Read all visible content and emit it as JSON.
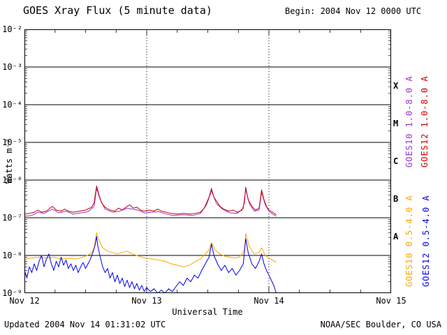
{
  "header": {
    "begin_label": "Begin:  2004 Nov 12 0000 UTC"
  },
  "footer": {
    "updated": "Updated 2004 Nov 14 01:31:02 UTC",
    "credit": "NOAA/SEC Boulder, CO USA"
  },
  "chart_data": {
    "type": "line",
    "title": "GOES Xray Flux (5 minute data)",
    "xlabel": "Universal Time",
    "ylabel": "Watts m⁻²",
    "x_axis": {
      "lim": [
        0,
        3
      ],
      "ticks": [
        {
          "t": 0,
          "label": "Nov 12"
        },
        {
          "t": 1,
          "label": "Nov 13"
        },
        {
          "t": 2,
          "label": "Nov 14"
        },
        {
          "t": 3,
          "label": "Nov 15"
        }
      ]
    },
    "y_axis": {
      "log10_lim": [
        -2,
        -9
      ],
      "tick_labels": [
        "10⁻²",
        "10⁻³",
        "10⁻⁴",
        "10⁻⁵",
        "10⁻⁶",
        "10⁻⁷",
        "10⁻⁸",
        "10⁻⁹"
      ]
    },
    "flare_classes": [
      {
        "label": "X",
        "log10_center": -3.5
      },
      {
        "label": "M",
        "log10_center": -4.5
      },
      {
        "label": "C",
        "log10_center": -5.5
      },
      {
        "label": "B",
        "log10_center": -6.5
      },
      {
        "label": "A",
        "log10_center": -7.5
      }
    ],
    "grid": {
      "h_lines_log10": [
        -3,
        -4,
        -5,
        -6,
        -7,
        -8
      ],
      "v_lines_days": [
        1,
        2
      ]
    },
    "series": [
      {
        "name": "GOES10 1.0-8.0 A",
        "color": "#9933cc",
        "points": [
          [
            0.0,
            1.1e-07
          ],
          [
            0.06,
            1.15e-07
          ],
          [
            0.11,
            1.4e-07
          ],
          [
            0.16,
            1.3e-07
          ],
          [
            0.23,
            1.7e-07
          ],
          [
            0.28,
            1.35e-07
          ],
          [
            0.34,
            1.5e-07
          ],
          [
            0.4,
            1.25e-07
          ],
          [
            0.46,
            1.35e-07
          ],
          [
            0.52,
            1.45e-07
          ],
          [
            0.57,
            2e-07
          ],
          [
            0.59,
            6e-07
          ],
          [
            0.62,
            3e-07
          ],
          [
            0.66,
            1.7e-07
          ],
          [
            0.72,
            1.4e-07
          ],
          [
            0.78,
            1.5e-07
          ],
          [
            0.84,
            1.8e-07
          ],
          [
            0.88,
            1.7e-07
          ],
          [
            0.93,
            1.6e-07
          ],
          [
            0.98,
            1.35e-07
          ],
          [
            1.04,
            1.4e-07
          ],
          [
            1.1,
            1.45e-07
          ],
          [
            1.16,
            1.25e-07
          ],
          [
            1.22,
            1.15e-07
          ],
          [
            1.3,
            1.2e-07
          ],
          [
            1.38,
            1.15e-07
          ],
          [
            1.44,
            1.3e-07
          ],
          [
            1.49,
            2.2e-07
          ],
          [
            1.53,
            5.2e-07
          ],
          [
            1.57,
            2.4e-07
          ],
          [
            1.62,
            1.7e-07
          ],
          [
            1.68,
            1.35e-07
          ],
          [
            1.74,
            1.3e-07
          ],
          [
            1.79,
            1.8e-07
          ],
          [
            1.81,
            5.6e-07
          ],
          [
            1.84,
            2.4e-07
          ],
          [
            1.88,
            1.5e-07
          ],
          [
            1.92,
            1.6e-07
          ],
          [
            1.94,
            4.8e-07
          ],
          [
            1.97,
            2.2e-07
          ],
          [
            2.0,
            1.5e-07
          ],
          [
            2.03,
            1.25e-07
          ],
          [
            2.06,
            1.1e-07
          ]
        ]
      },
      {
        "name": "GOES12 1.0-8.0 A",
        "color": "#cc0000",
        "points": [
          [
            0.0,
            1.25e-07
          ],
          [
            0.04,
            1.3e-07
          ],
          [
            0.08,
            1.4e-07
          ],
          [
            0.11,
            1.6e-07
          ],
          [
            0.14,
            1.4e-07
          ],
          [
            0.18,
            1.5e-07
          ],
          [
            0.21,
            1.8e-07
          ],
          [
            0.23,
            2e-07
          ],
          [
            0.26,
            1.6e-07
          ],
          [
            0.3,
            1.5e-07
          ],
          [
            0.33,
            1.7e-07
          ],
          [
            0.36,
            1.5e-07
          ],
          [
            0.4,
            1.4e-07
          ],
          [
            0.45,
            1.5e-07
          ],
          [
            0.5,
            1.6e-07
          ],
          [
            0.55,
            1.9e-07
          ],
          [
            0.57,
            2.5e-07
          ],
          [
            0.59,
            7e-07
          ],
          [
            0.61,
            4e-07
          ],
          [
            0.63,
            2.5e-07
          ],
          [
            0.66,
            1.9e-07
          ],
          [
            0.7,
            1.6e-07
          ],
          [
            0.74,
            1.5e-07
          ],
          [
            0.77,
            1.8e-07
          ],
          [
            0.8,
            1.6e-07
          ],
          [
            0.84,
            2e-07
          ],
          [
            0.86,
            2.2e-07
          ],
          [
            0.89,
            1.8e-07
          ],
          [
            0.92,
            1.9e-07
          ],
          [
            0.95,
            1.6e-07
          ],
          [
            0.98,
            1.5e-07
          ],
          [
            1.02,
            1.6e-07
          ],
          [
            1.06,
            1.5e-07
          ],
          [
            1.09,
            1.7e-07
          ],
          [
            1.12,
            1.5e-07
          ],
          [
            1.16,
            1.4e-07
          ],
          [
            1.2,
            1.3e-07
          ],
          [
            1.25,
            1.25e-07
          ],
          [
            1.3,
            1.3e-07
          ],
          [
            1.35,
            1.25e-07
          ],
          [
            1.4,
            1.3e-07
          ],
          [
            1.44,
            1.4e-07
          ],
          [
            1.47,
            1.8e-07
          ],
          [
            1.49,
            2.5e-07
          ],
          [
            1.51,
            3.5e-07
          ],
          [
            1.53,
            6e-07
          ],
          [
            1.55,
            3.5e-07
          ],
          [
            1.57,
            2.8e-07
          ],
          [
            1.6,
            2e-07
          ],
          [
            1.63,
            1.7e-07
          ],
          [
            1.67,
            1.5e-07
          ],
          [
            1.71,
            1.6e-07
          ],
          [
            1.74,
            1.4e-07
          ],
          [
            1.78,
            1.6e-07
          ],
          [
            1.8,
            2.5e-07
          ],
          [
            1.81,
            6.5e-07
          ],
          [
            1.83,
            3e-07
          ],
          [
            1.86,
            2e-07
          ],
          [
            1.89,
            1.6e-07
          ],
          [
            1.92,
            1.8e-07
          ],
          [
            1.94,
            5.5e-07
          ],
          [
            1.96,
            3e-07
          ],
          [
            1.98,
            2e-07
          ],
          [
            2.0,
            1.6e-07
          ],
          [
            2.03,
            1.4e-07
          ],
          [
            2.06,
            1.2e-07
          ]
        ]
      },
      {
        "name": "GOES10 0.5-4.0 A",
        "color": "#ffa500",
        "points": [
          [
            0.0,
            8e-09
          ],
          [
            0.06,
            8.5e-09
          ],
          [
            0.12,
            9e-09
          ],
          [
            0.18,
            8.5e-09
          ],
          [
            0.24,
            9e-09
          ],
          [
            0.3,
            8e-09
          ],
          [
            0.36,
            8.5e-09
          ],
          [
            0.42,
            8e-09
          ],
          [
            0.48,
            9e-09
          ],
          [
            0.54,
            1.1e-08
          ],
          [
            0.57,
            1.5e-08
          ],
          [
            0.59,
            4e-08
          ],
          [
            0.61,
            2.5e-08
          ],
          [
            0.64,
            1.6e-08
          ],
          [
            0.68,
            1.3e-08
          ],
          [
            0.72,
            1.2e-08
          ],
          [
            0.76,
            1.1e-08
          ],
          [
            0.8,
            1.2e-08
          ],
          [
            0.84,
            1.3e-08
          ],
          [
            0.88,
            1.1e-08
          ],
          [
            0.92,
            1e-08
          ],
          [
            0.96,
            9e-09
          ],
          [
            1.0,
            8.5e-09
          ],
          [
            1.05,
            8e-09
          ],
          [
            1.1,
            7.5e-09
          ],
          [
            1.15,
            7e-09
          ],
          [
            1.2,
            6e-09
          ],
          [
            1.25,
            5.5e-09
          ],
          [
            1.3,
            5e-09
          ],
          [
            1.35,
            5.5e-09
          ],
          [
            1.4,
            7e-09
          ],
          [
            1.44,
            8e-09
          ],
          [
            1.48,
            1.1e-08
          ],
          [
            1.51,
            1.4e-08
          ],
          [
            1.53,
            2.2e-08
          ],
          [
            1.56,
            1.4e-08
          ],
          [
            1.6,
            1.1e-08
          ],
          [
            1.64,
            9.5e-09
          ],
          [
            1.68,
            9e-09
          ],
          [
            1.72,
            8.5e-09
          ],
          [
            1.76,
            9e-09
          ],
          [
            1.8,
            1.4e-08
          ],
          [
            1.81,
            3.8e-08
          ],
          [
            1.84,
            1.7e-08
          ],
          [
            1.88,
            1.1e-08
          ],
          [
            1.92,
            1.2e-08
          ],
          [
            1.94,
            1.6e-08
          ],
          [
            1.97,
            1e-08
          ],
          [
            2.0,
            8.5e-09
          ],
          [
            2.03,
            7.5e-09
          ],
          [
            2.06,
            6.5e-09
          ]
        ]
      },
      {
        "name": "GOES12 0.5-4.0 A",
        "color": "#0000ee",
        "points": [
          [
            0.0,
            4e-09
          ],
          [
            0.02,
            2.5e-09
          ],
          [
            0.04,
            5e-09
          ],
          [
            0.06,
            3.5e-09
          ],
          [
            0.08,
            6e-09
          ],
          [
            0.1,
            4e-09
          ],
          [
            0.12,
            7e-09
          ],
          [
            0.14,
            1e-08
          ],
          [
            0.16,
            5e-09
          ],
          [
            0.18,
            8e-09
          ],
          [
            0.2,
            1.1e-08
          ],
          [
            0.22,
            6e-09
          ],
          [
            0.24,
            4e-09
          ],
          [
            0.26,
            7e-09
          ],
          [
            0.28,
            5e-09
          ],
          [
            0.3,
            9e-09
          ],
          [
            0.32,
            5.5e-09
          ],
          [
            0.34,
            7.5e-09
          ],
          [
            0.36,
            4.5e-09
          ],
          [
            0.38,
            6e-09
          ],
          [
            0.4,
            4e-09
          ],
          [
            0.42,
            5.5e-09
          ],
          [
            0.44,
            3.5e-09
          ],
          [
            0.46,
            5e-09
          ],
          [
            0.48,
            6.5e-09
          ],
          [
            0.5,
            4.5e-09
          ],
          [
            0.52,
            6e-09
          ],
          [
            0.54,
            8e-09
          ],
          [
            0.56,
            1.2e-08
          ],
          [
            0.58,
            2e-08
          ],
          [
            0.59,
            3.2e-08
          ],
          [
            0.6,
            1.8e-08
          ],
          [
            0.62,
            9e-09
          ],
          [
            0.64,
            5e-09
          ],
          [
            0.66,
            3.5e-09
          ],
          [
            0.68,
            4.5e-09
          ],
          [
            0.7,
            2.5e-09
          ],
          [
            0.72,
            3.5e-09
          ],
          [
            0.74,
            2e-09
          ],
          [
            0.76,
            3e-09
          ],
          [
            0.78,
            1.8e-09
          ],
          [
            0.8,
            2.5e-09
          ],
          [
            0.82,
            1.5e-09
          ],
          [
            0.84,
            2.2e-09
          ],
          [
            0.86,
            1.4e-09
          ],
          [
            0.88,
            2e-09
          ],
          [
            0.9,
            1.3e-09
          ],
          [
            0.92,
            1.8e-09
          ],
          [
            0.94,
            1.2e-09
          ],
          [
            0.96,
            1.6e-09
          ],
          [
            0.98,
            1.1e-09
          ],
          [
            1.0,
            1.4e-09
          ],
          [
            1.03,
            1.1e-09
          ],
          [
            1.06,
            1.3e-09
          ],
          [
            1.09,
            1e-09
          ],
          [
            1.12,
            1.2e-09
          ],
          [
            1.15,
            1e-09
          ],
          [
            1.18,
            1.3e-09
          ],
          [
            1.21,
            1.1e-09
          ],
          [
            1.24,
            1.5e-09
          ],
          [
            1.27,
            2e-09
          ],
          [
            1.3,
            1.6e-09
          ],
          [
            1.33,
            2.5e-09
          ],
          [
            1.36,
            2e-09
          ],
          [
            1.39,
            3e-09
          ],
          [
            1.42,
            2.5e-09
          ],
          [
            1.45,
            4e-09
          ],
          [
            1.48,
            6e-09
          ],
          [
            1.51,
            9e-09
          ],
          [
            1.53,
            2e-08
          ],
          [
            1.55,
            1e-08
          ],
          [
            1.58,
            6e-09
          ],
          [
            1.61,
            4e-09
          ],
          [
            1.64,
            5.5e-09
          ],
          [
            1.67,
            3.5e-09
          ],
          [
            1.7,
            4.5e-09
          ],
          [
            1.73,
            3e-09
          ],
          [
            1.76,
            4e-09
          ],
          [
            1.79,
            6e-09
          ],
          [
            1.81,
            2.8e-08
          ],
          [
            1.83,
            1.2e-08
          ],
          [
            1.86,
            6e-09
          ],
          [
            1.89,
            4.5e-09
          ],
          [
            1.92,
            7e-09
          ],
          [
            1.94,
            1.1e-08
          ],
          [
            1.96,
            6e-09
          ],
          [
            1.98,
            4e-09
          ],
          [
            2.0,
            3e-09
          ],
          [
            2.02,
            2.2e-09
          ],
          [
            2.04,
            1.6e-09
          ],
          [
            2.06,
            1e-09
          ]
        ]
      }
    ]
  }
}
